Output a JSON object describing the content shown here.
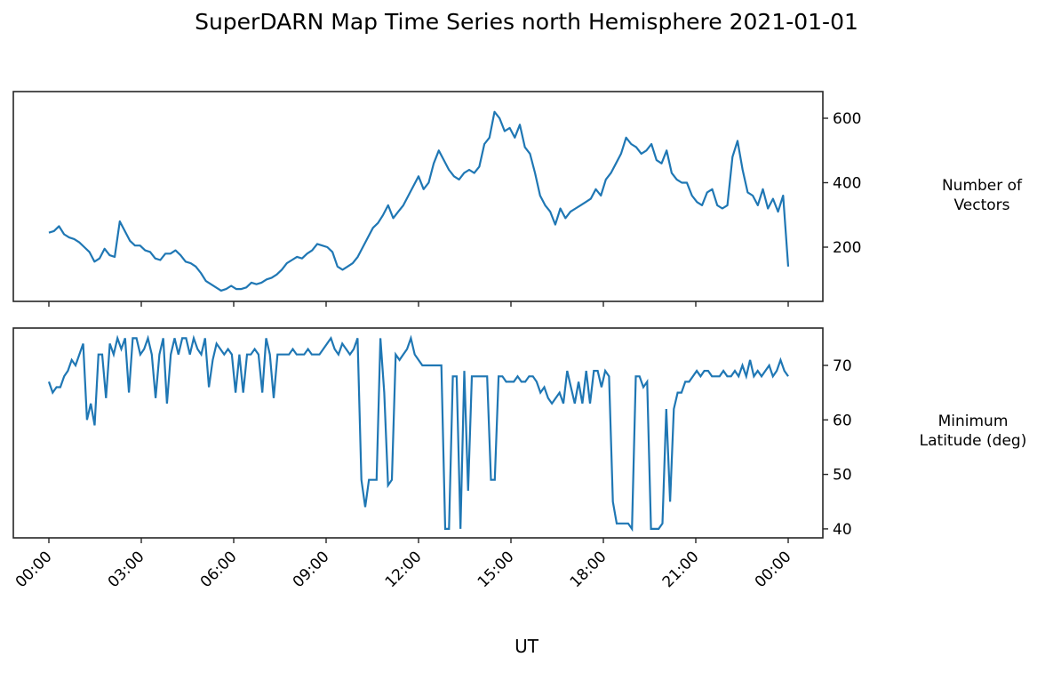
{
  "title": "SuperDARN Map Time Series north Hemisphere 2021-01-01",
  "xlabel": "UT",
  "colors": {
    "line": "#1f77b4",
    "axes": "#262626",
    "background": "#ffffff"
  },
  "chart_data": [
    {
      "type": "line",
      "title": "SuperDARN Map Time Series north Hemisphere 2021-01-01",
      "panel": "top",
      "xlabel": "UT",
      "ylabel": "Number of\nVectors",
      "ylabel_position": "right",
      "yticks": [
        200,
        400,
        600
      ],
      "ylim": [
        30,
        680
      ],
      "xticks": [
        "00:00",
        "03:00",
        "06:00",
        "09:00",
        "12:00",
        "15:00",
        "18:00",
        "21:00",
        "00:00"
      ],
      "x_hours_step": 0.25,
      "grid": false,
      "series": [
        {
          "name": "Number of Vectors",
          "values": [
            245,
            250,
            265,
            240,
            230,
            225,
            215,
            200,
            185,
            155,
            165,
            195,
            175,
            170,
            280,
            250,
            220,
            205,
            205,
            190,
            185,
            165,
            160,
            180,
            180,
            190,
            175,
            155,
            150,
            140,
            120,
            95,
            85,
            75,
            65,
            70,
            80,
            70,
            70,
            75,
            90,
            85,
            90,
            100,
            105,
            115,
            130,
            150,
            160,
            170,
            165,
            180,
            190,
            210,
            205,
            200,
            185,
            140,
            130,
            140,
            150,
            170,
            200,
            230,
            260,
            275,
            300,
            330,
            290,
            310,
            330,
            360,
            390,
            420,
            380,
            400,
            460,
            500,
            470,
            440,
            420,
            410,
            430,
            440,
            430,
            450,
            520,
            540,
            620,
            600,
            560,
            570,
            540,
            580,
            510,
            490,
            430,
            360,
            330,
            310,
            270,
            320,
            290,
            310,
            320,
            330,
            340,
            350,
            380,
            360,
            410,
            430,
            460,
            490,
            540,
            520,
            510,
            490,
            500,
            520,
            470,
            460,
            500,
            430,
            410,
            400,
            400,
            360,
            340,
            330,
            370,
            380,
            330,
            320,
            330,
            480,
            530,
            440,
            370,
            360,
            330,
            380,
            320,
            350,
            310,
            360,
            140
          ]
        }
      ]
    },
    {
      "type": "line",
      "panel": "bottom",
      "xlabel": "UT",
      "ylabel": "Minimum\nLatitude (deg)",
      "ylabel_position": "right",
      "yticks": [
        40,
        50,
        60,
        70
      ],
      "ylim": [
        38.5,
        77
      ],
      "xticks": [
        "00:00",
        "03:00",
        "06:00",
        "09:00",
        "12:00",
        "15:00",
        "18:00",
        "21:00",
        "00:00"
      ],
      "x_hours_step": 0.25,
      "grid": false,
      "series": [
        {
          "name": "Minimum Latitude (deg)",
          "values": [
            67,
            65,
            66,
            66,
            68,
            69,
            71,
            70,
            72,
            74,
            60,
            63,
            59,
            72,
            72,
            64,
            74,
            72,
            75,
            73,
            75,
            65,
            75,
            75,
            72,
            73,
            75,
            72,
            64,
            72,
            75,
            63,
            72,
            75,
            72,
            75,
            75,
            72,
            75,
            73,
            72,
            75,
            66,
            71,
            74,
            73,
            72,
            73,
            72,
            65,
            72,
            65,
            72,
            72,
            73,
            72,
            65,
            75,
            72,
            64,
            72,
            72,
            72,
            72,
            73,
            72,
            72,
            72,
            73,
            72,
            72,
            72,
            73,
            74,
            75,
            73,
            72,
            74,
            73,
            72,
            73,
            75,
            49,
            44,
            49,
            49,
            49,
            75,
            65,
            48,
            49,
            72,
            71,
            72,
            73,
            75,
            72,
            71,
            70,
            70,
            70,
            70,
            70,
            70,
            40,
            40,
            68,
            68,
            40,
            69,
            47,
            68,
            68,
            68,
            68,
            68,
            49,
            49,
            68,
            68,
            67,
            67,
            67,
            68,
            67,
            67,
            68,
            68,
            67,
            65,
            66,
            64,
            63,
            64,
            65,
            63,
            69,
            66,
            63,
            67,
            63,
            69,
            63,
            69,
            69,
            66,
            69,
            68,
            45,
            41,
            41,
            41,
            41,
            40,
            68,
            68,
            66,
            67,
            40,
            40,
            40,
            41,
            62,
            45,
            62,
            65,
            65,
            67,
            67,
            68,
            69,
            68,
            69,
            69,
            68,
            68,
            68,
            69,
            68,
            68,
            69,
            68,
            70,
            68,
            71,
            68,
            69,
            68,
            69,
            70,
            68,
            69,
            71,
            69,
            68
          ]
        }
      ]
    }
  ],
  "panels": {
    "top": {
      "ylabel_line1": "Number of",
      "ylabel_line2": "Vectors"
    },
    "bottom": {
      "ylabel_line1": "Minimum",
      "ylabel_line2": "Latitude (deg)"
    }
  }
}
